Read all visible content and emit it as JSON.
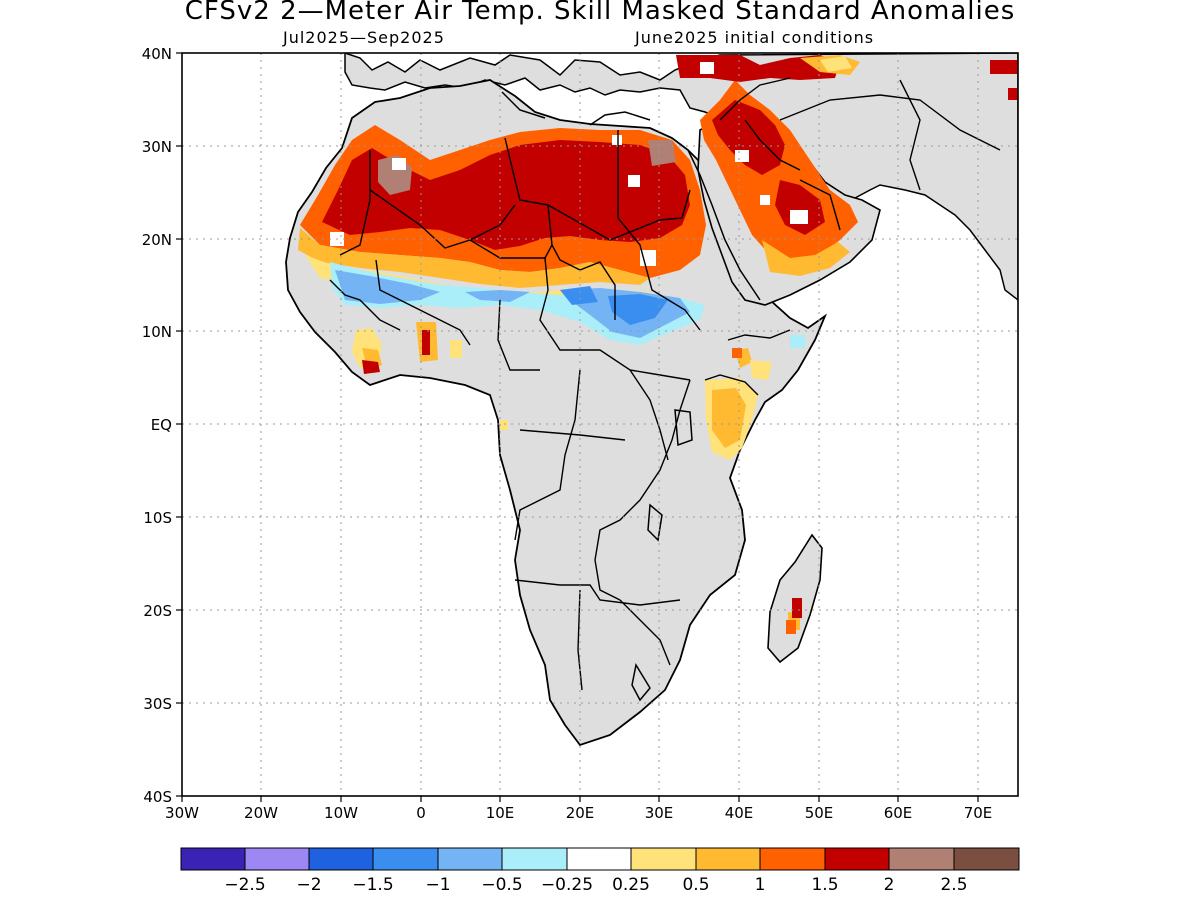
{
  "title": "CFSv2 2—Meter Air Temp. Skill Masked Standard Anomalies",
  "subtitle_left": "Jul2025—Sep2025",
  "subtitle_right": "June2025 initial conditions",
  "lat_labels": [
    "40N",
    "30N",
    "20N",
    "10N",
    "EQ",
    "10S",
    "20S",
    "30S",
    "40S"
  ],
  "lon_labels": [
    "30W",
    "20W",
    "10W",
    "0",
    "10E",
    "20E",
    "30E",
    "40E",
    "50E",
    "60E",
    "70E"
  ],
  "colorbar": {
    "colors": [
      "#3a22b4",
      "#9d87f2",
      "#1e62e0",
      "#3a8ef0",
      "#74b4f5",
      "#aaeefa",
      "#ffffff",
      "#ffe27a",
      "#ffba32",
      "#ff6000",
      "#c20000",
      "#b08074",
      "#7a4e40"
    ],
    "labels": [
      "−2.5",
      "−2",
      "−1.5",
      "−1",
      "−0.5",
      "−0.25",
      "0.25",
      "0.5",
      "1",
      "1.5",
      "2",
      "2.5"
    ]
  },
  "palette": {
    "land_masked": "#dedede",
    "ocean": "#ffffff",
    "coast": "#000000",
    "grid": "#999999"
  }
}
